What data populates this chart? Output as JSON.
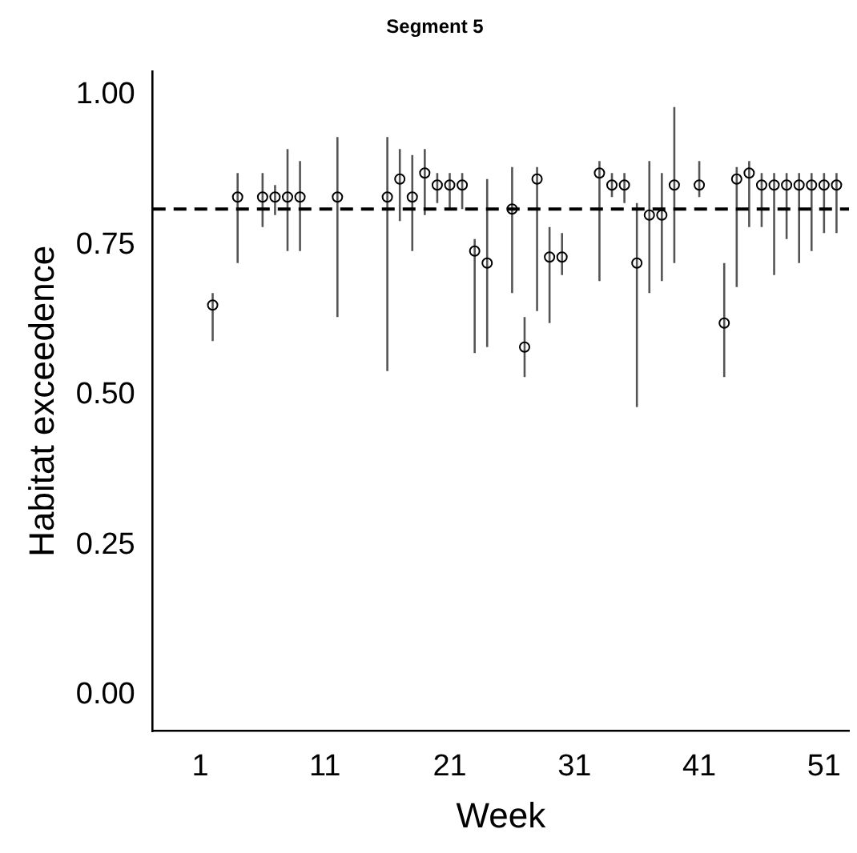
{
  "chart_data": {
    "type": "scatter",
    "title": "Segment 5",
    "xlabel": "Week",
    "ylabel": "Habitat exceedence",
    "x": [
      2,
      4,
      6,
      7,
      8,
      9,
      12,
      16,
      17,
      18,
      19,
      20,
      21,
      22,
      23,
      24,
      26,
      27,
      28,
      29,
      30,
      33,
      34,
      35,
      36,
      37,
      38,
      39,
      41,
      43,
      44,
      45,
      46,
      47,
      48,
      49,
      50,
      51,
      52
    ],
    "values": [
      0.65,
      0.83,
      0.83,
      0.83,
      0.83,
      0.83,
      0.83,
      0.83,
      0.86,
      0.83,
      0.87,
      0.85,
      0.85,
      0.85,
      0.74,
      0.72,
      0.81,
      0.58,
      0.86,
      0.73,
      0.73,
      0.87,
      0.85,
      0.85,
      0.72,
      0.8,
      0.8,
      0.85,
      0.85,
      0.62,
      0.86,
      0.87,
      0.85,
      0.85,
      0.85,
      0.85,
      0.85,
      0.85,
      0.85
    ],
    "errors": [
      [
        0.59,
        0.67
      ],
      [
        0.72,
        0.87
      ],
      [
        0.78,
        0.87
      ],
      [
        0.8,
        0.85
      ],
      [
        0.74,
        0.91
      ],
      [
        0.74,
        0.89
      ],
      [
        0.63,
        0.93
      ],
      [
        0.54,
        0.93
      ],
      [
        0.79,
        0.91
      ],
      [
        0.74,
        0.9
      ],
      [
        0.8,
        0.91
      ],
      [
        0.82,
        0.87
      ],
      [
        0.81,
        0.87
      ],
      [
        0.81,
        0.87
      ],
      [
        0.57,
        0.76
      ],
      [
        0.58,
        0.86
      ],
      [
        0.67,
        0.88
      ],
      [
        0.53,
        0.63
      ],
      [
        0.64,
        0.88
      ],
      [
        0.62,
        0.78
      ],
      [
        0.7,
        0.77
      ],
      [
        0.69,
        0.89
      ],
      [
        0.83,
        0.87
      ],
      [
        0.82,
        0.87
      ],
      [
        0.48,
        0.82
      ],
      [
        0.67,
        0.89
      ],
      [
        0.69,
        0.87
      ],
      [
        0.72,
        0.98
      ],
      [
        0.83,
        0.89
      ],
      [
        0.53,
        0.72
      ],
      [
        0.68,
        0.88
      ],
      [
        0.78,
        0.89
      ],
      [
        0.78,
        0.87
      ],
      [
        0.7,
        0.87
      ],
      [
        0.76,
        0.87
      ],
      [
        0.72,
        0.87
      ],
      [
        0.74,
        0.87
      ],
      [
        0.77,
        0.87
      ],
      [
        0.77,
        0.87
      ]
    ],
    "color": "#000000",
    "marker": "circle",
    "xlim": [
      -2.8,
      53
    ],
    "xticks": [
      1,
      11,
      21,
      31,
      41,
      51
    ],
    "ylim": [
      -0.06,
      1.04
    ],
    "yticks": [
      {
        "value": 0,
        "label": "0.00"
      },
      {
        "value": 0.25,
        "label": "0.25"
      },
      {
        "value": 0.5,
        "label": "0.50"
      },
      {
        "value": 0.75,
        "label": "0.75"
      },
      {
        "value": 1,
        "label": "1.00"
      }
    ],
    "ref_lines": [
      {
        "axis": "y",
        "value": 0.81,
        "color": "#000000",
        "line_style": "dashed"
      }
    ],
    "grid": false,
    "legend": false
  }
}
